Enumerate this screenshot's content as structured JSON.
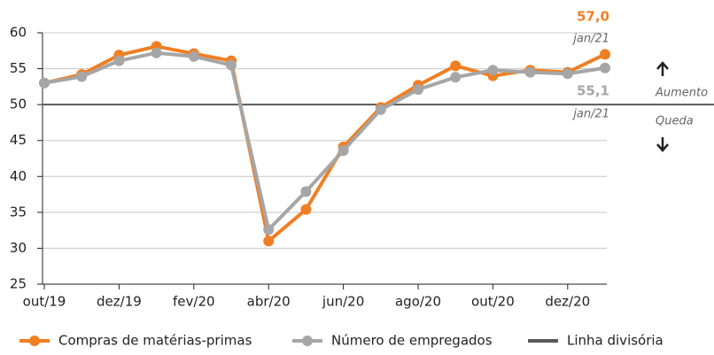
{
  "chart_data": {
    "type": "line",
    "categories": [
      "out/19",
      null,
      "dez/19",
      null,
      "fev/20",
      null,
      "abr/20",
      null,
      "jun/20",
      null,
      "ago/20",
      null,
      "out/20",
      null,
      "dez/20",
      null
    ],
    "series": [
      {
        "name": "Compras de matérias-primas",
        "color": "#f07f23",
        "values": [
          53,
          54.2,
          56.9,
          58.1,
          57.1,
          56.1,
          31,
          35.4,
          44.1,
          49.6,
          52.7,
          55.4,
          54.0,
          54.8,
          54.5,
          57.0
        ],
        "value_labels": [
          null,
          null,
          null,
          null,
          null,
          null,
          null,
          null,
          null,
          null,
          null,
          null,
          null,
          null,
          null,
          "57,0"
        ]
      },
      {
        "name": "Número de empregados",
        "color": "#a6a6a6",
        "values": [
          53,
          53.9,
          56.1,
          57.2,
          56.7,
          55.5,
          32.6,
          37.9,
          43.6,
          49.3,
          52.1,
          53.8,
          54.8,
          54.5,
          54.3,
          55.1
        ],
        "value_labels": [
          null,
          null,
          null,
          null,
          null,
          null,
          null,
          null,
          null,
          null,
          null,
          null,
          null,
          null,
          null,
          "55,1"
        ]
      }
    ],
    "reference_line": {
      "name": "Linha divisória",
      "value": 50,
      "color": "#595959"
    },
    "annotations": [
      "jan/21",
      "jan/21",
      "Aumento",
      "Queda"
    ],
    "ylim": [
      25,
      60
    ],
    "yticks": [
      25,
      30,
      35,
      40,
      45,
      50,
      55,
      60
    ],
    "grid": true
  }
}
